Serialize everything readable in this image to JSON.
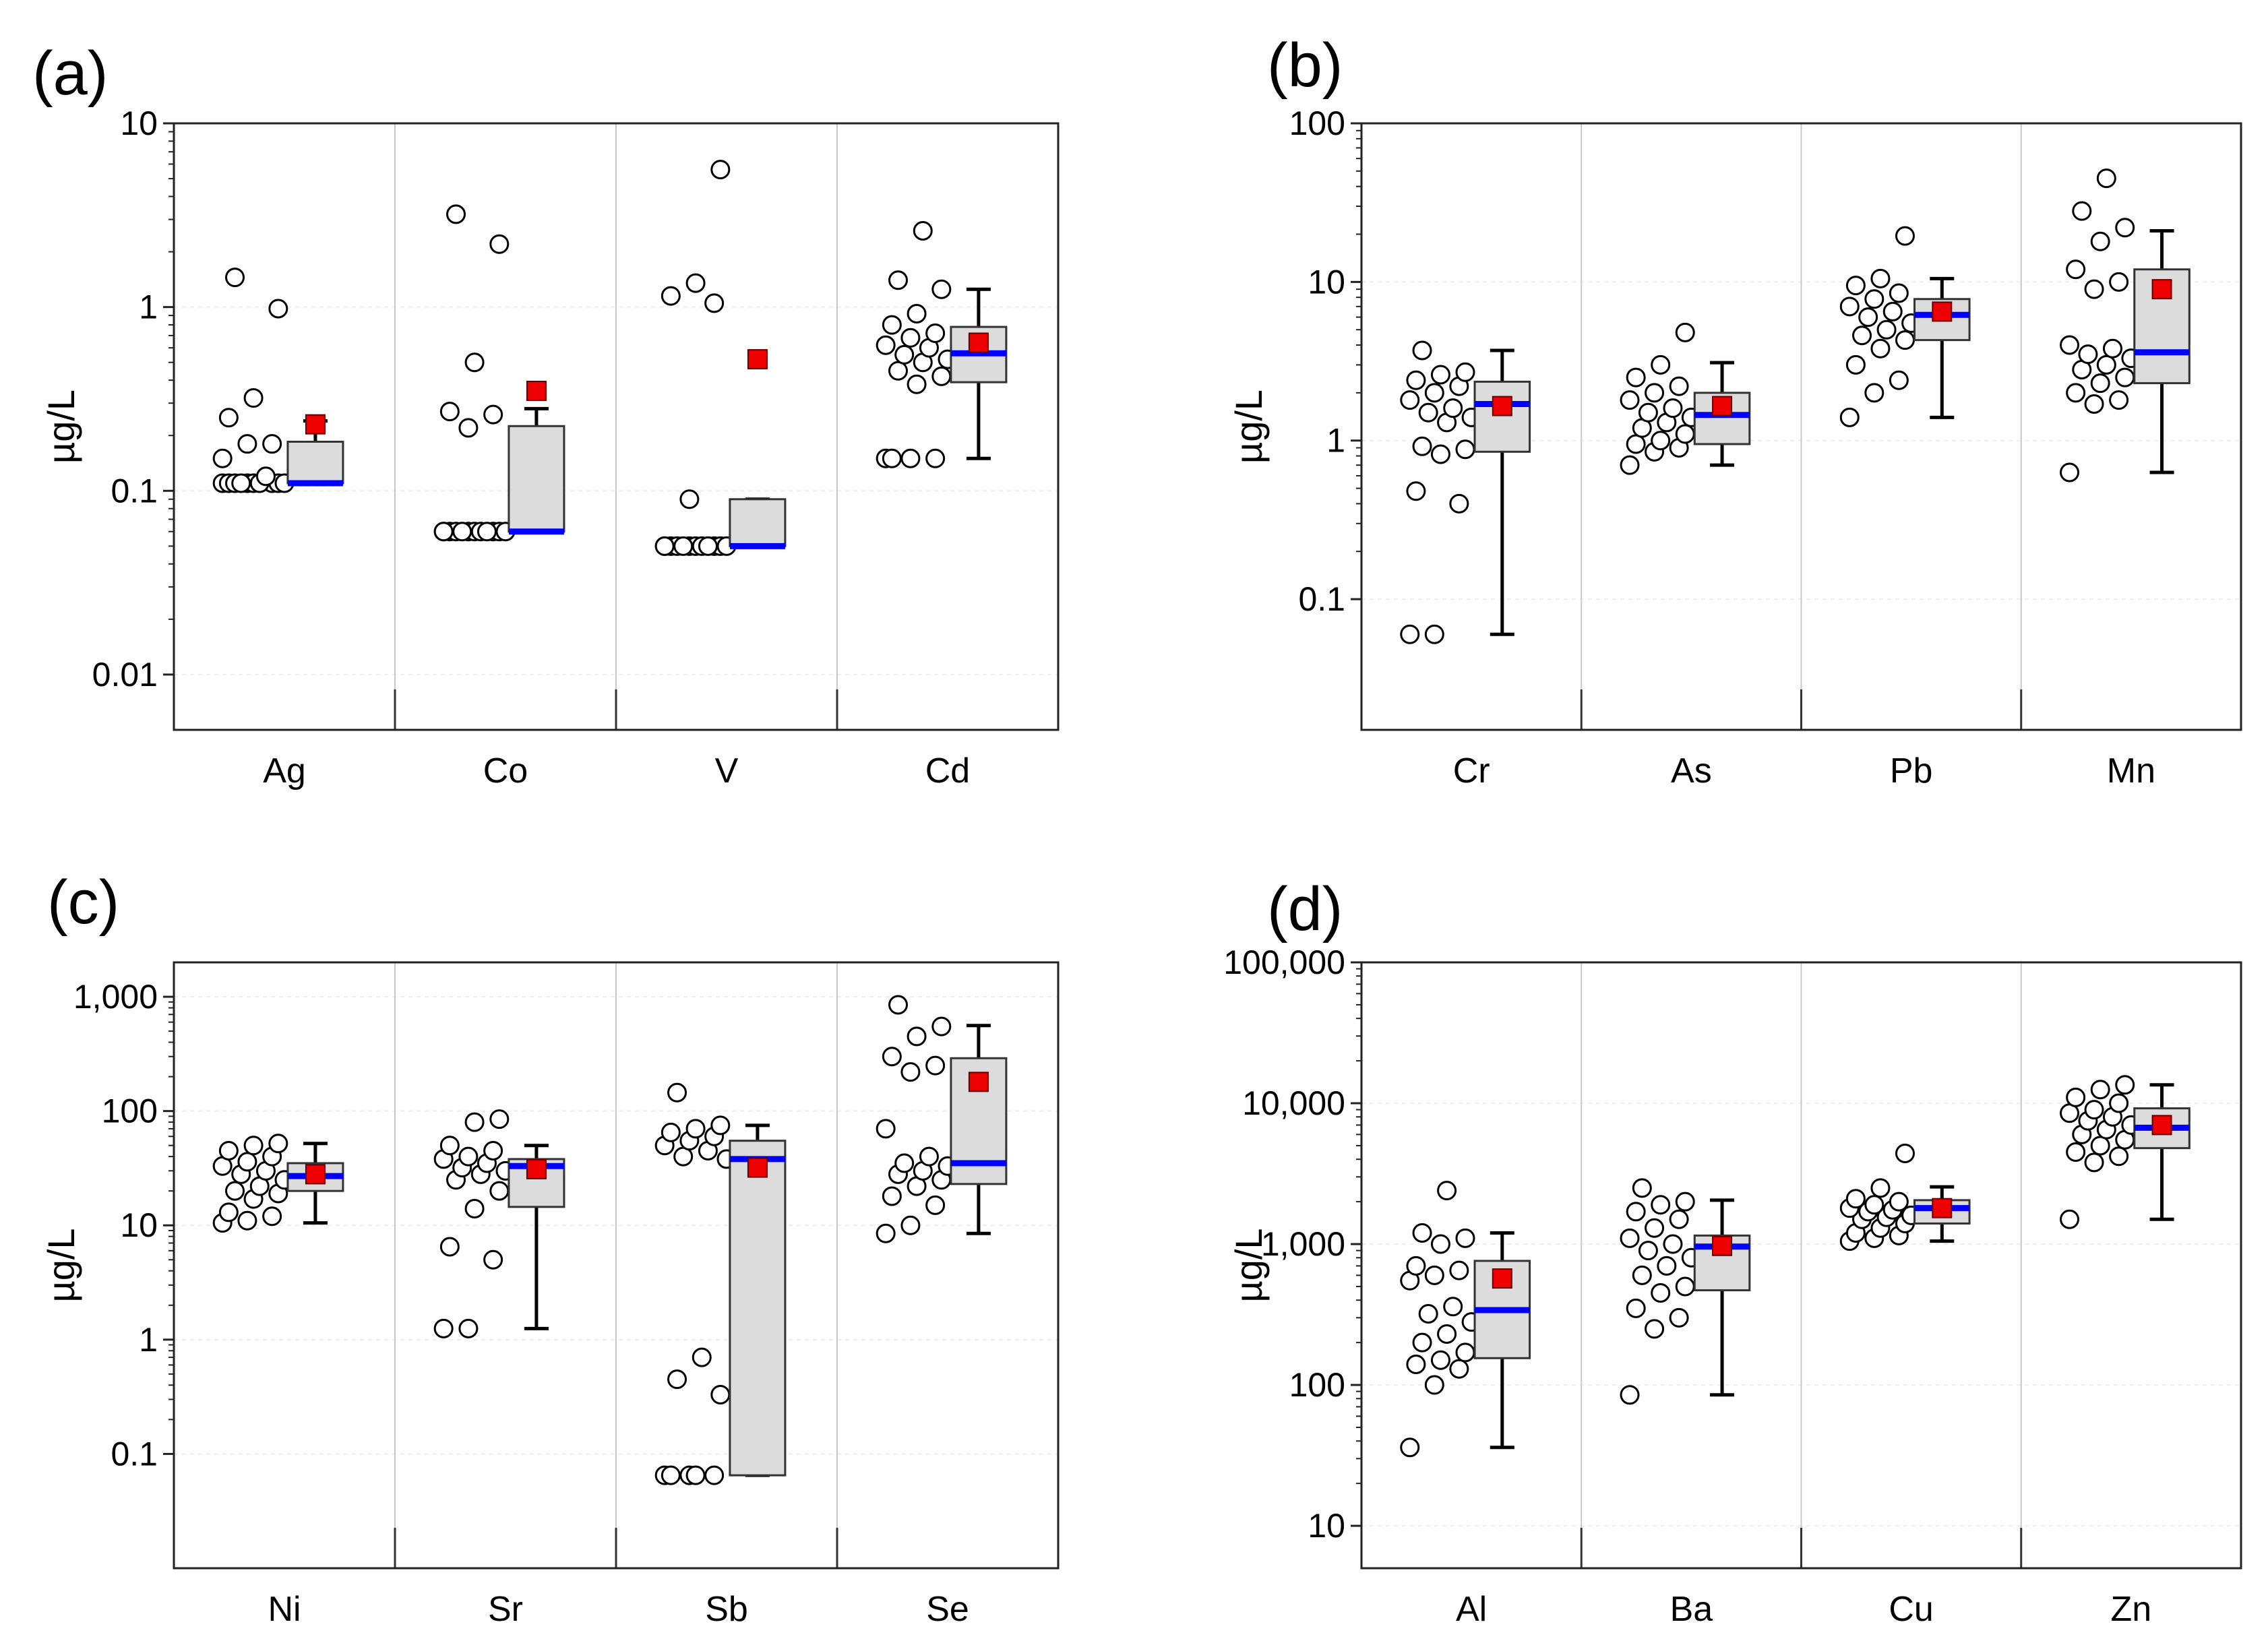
{
  "figure": {
    "colors": {
      "box_fill": "#dcdcdc",
      "median": "#0000ff",
      "mean": "#ee0000",
      "point_stroke": "#000000",
      "divider": "#c8c8c8",
      "grid": "#eeeeee"
    }
  },
  "chart_data": [
    {
      "panel": "(a)",
      "type": "box",
      "ylabel": "µg/L",
      "yscale": "log",
      "ylim": [
        0.005,
        10
      ],
      "yticks": [
        {
          "v": 0.01,
          "label": "0.01"
        },
        {
          "v": 0.1,
          "label": "0.1"
        },
        {
          "v": 1,
          "label": "1"
        },
        {
          "v": 10,
          "label": "10"
        }
      ],
      "categories": [
        {
          "name": "Ag",
          "points": [
            0.11,
            0.11,
            0.11,
            0.11,
            0.11,
            0.11,
            0.11,
            0.11,
            0.11,
            0.11,
            0.12,
            0.15,
            0.18,
            0.18,
            0.25,
            0.32,
            0.98,
            1.45
          ],
          "q1": 0.11,
          "median": 0.11,
          "q3": 0.185,
          "whisker_low": 0.11,
          "whisker_high": 0.24,
          "mean": 0.23
        },
        {
          "name": "Co",
          "points": [
            0.06,
            0.06,
            0.06,
            0.06,
            0.06,
            0.06,
            0.06,
            0.06,
            0.06,
            0.06,
            0.06,
            0.06,
            0.22,
            0.26,
            0.27,
            0.5,
            2.2,
            3.2
          ],
          "q1": 0.06,
          "median": 0.06,
          "q3": 0.225,
          "whisker_low": 0.06,
          "whisker_high": 0.28,
          "mean": 0.35
        },
        {
          "name": "V",
          "points": [
            0.05,
            0.05,
            0.05,
            0.05,
            0.05,
            0.05,
            0.05,
            0.05,
            0.05,
            0.05,
            0.05,
            0.05,
            0.09,
            1.05,
            1.15,
            1.35,
            5.6
          ],
          "q1": 0.05,
          "median": 0.05,
          "q3": 0.09,
          "whisker_low": 0.05,
          "whisker_high": 0.09,
          "mean": 0.52
        },
        {
          "name": "Cd",
          "points": [
            0.15,
            0.15,
            0.15,
            0.15,
            0.38,
            0.42,
            0.45,
            0.5,
            0.52,
            0.55,
            0.6,
            0.62,
            0.68,
            0.72,
            0.8,
            0.92,
            1.25,
            1.4,
            2.6
          ],
          "q1": 0.39,
          "median": 0.56,
          "q3": 0.78,
          "whisker_low": 0.15,
          "whisker_high": 1.25,
          "mean": 0.64
        }
      ]
    },
    {
      "panel": "(b)",
      "type": "box",
      "ylabel": "µg/L",
      "yscale": "log",
      "ylim": [
        0.015,
        100
      ],
      "yticks": [
        {
          "v": 0.1,
          "label": "0.1"
        },
        {
          "v": 1,
          "label": "1"
        },
        {
          "v": 10,
          "label": "10"
        },
        {
          "v": 100,
          "label": "100"
        }
      ],
      "categories": [
        {
          "name": "Cr",
          "points": [
            0.06,
            0.06,
            0.4,
            0.48,
            0.82,
            0.88,
            0.92,
            1.3,
            1.4,
            1.5,
            1.6,
            1.8,
            2.0,
            2.2,
            2.4,
            2.6,
            2.7,
            3.7
          ],
          "q1": 0.85,
          "median": 1.7,
          "q3": 2.35,
          "whisker_low": 0.06,
          "whisker_high": 3.7,
          "mean": 1.65
        },
        {
          "name": "As",
          "points": [
            0.7,
            0.85,
            0.9,
            0.95,
            1.0,
            1.1,
            1.2,
            1.3,
            1.4,
            1.5,
            1.6,
            1.8,
            2.0,
            2.2,
            2.5,
            3.0,
            4.8
          ],
          "q1": 0.95,
          "median": 1.45,
          "q3": 2.0,
          "whisker_low": 0.7,
          "whisker_high": 3.1,
          "mean": 1.65
        },
        {
          "name": "Pb",
          "points": [
            1.4,
            2.0,
            2.4,
            3.0,
            3.8,
            4.3,
            4.6,
            5.0,
            5.5,
            6.0,
            6.5,
            7.0,
            7.8,
            8.5,
            9.5,
            10.5,
            19.5
          ],
          "q1": 4.3,
          "median": 6.2,
          "q3": 7.8,
          "whisker_low": 1.4,
          "whisker_high": 10.5,
          "mean": 6.5
        },
        {
          "name": "Mn",
          "points": [
            0.63,
            1.7,
            1.8,
            2.0,
            2.3,
            2.5,
            2.8,
            3.0,
            3.3,
            3.5,
            3.8,
            4.0,
            9.0,
            10.0,
            12.0,
            18.0,
            22.0,
            28.0,
            45.0
          ],
          "q1": 2.3,
          "median": 3.6,
          "q3": 12.0,
          "whisker_low": 0.63,
          "whisker_high": 21.0,
          "mean": 9.0
        }
      ]
    },
    {
      "panel": "(c)",
      "type": "box",
      "ylabel": "µg/L",
      "yscale": "log",
      "ylim": [
        0.01,
        2000
      ],
      "yticks": [
        {
          "v": 0.1,
          "label": "0.1"
        },
        {
          "v": 1,
          "label": "1"
        },
        {
          "v": 10,
          "label": "10"
        },
        {
          "v": 100,
          "label": "100"
        },
        {
          "v": 1000,
          "label": "1,000"
        }
      ],
      "categories": [
        {
          "name": "Ni",
          "points": [
            10.5,
            11.0,
            12.0,
            13.0,
            17.0,
            19.0,
            20.0,
            22.0,
            25.0,
            28.0,
            30.0,
            33.0,
            36.0,
            40.0,
            45.0,
            50.0,
            52.0
          ],
          "q1": 20.0,
          "median": 27.0,
          "q3": 35.0,
          "whisker_low": 10.5,
          "whisker_high": 52.0,
          "mean": 28.0
        },
        {
          "name": "Sr",
          "points": [
            1.25,
            1.25,
            5.0,
            6.5,
            14.0,
            20.0,
            25.0,
            28.0,
            30.0,
            32.0,
            35.0,
            38.0,
            40.0,
            45.0,
            50.0,
            80.0,
            85.0
          ],
          "q1": 14.5,
          "median": 33.0,
          "q3": 38.0,
          "whisker_low": 1.25,
          "whisker_high": 50.0,
          "mean": 31.0
        },
        {
          "name": "Sb",
          "points": [
            0.065,
            0.065,
            0.065,
            0.065,
            0.065,
            0.33,
            0.45,
            0.7,
            38.0,
            40.0,
            45.0,
            50.0,
            55.0,
            60.0,
            65.0,
            70.0,
            75.0,
            145.0
          ],
          "q1": 0.065,
          "median": 38.0,
          "q3": 55.0,
          "whisker_low": 0.065,
          "whisker_high": 75.0,
          "mean": 32.0
        },
        {
          "name": "Se",
          "points": [
            8.5,
            10.0,
            15.0,
            18.0,
            22.0,
            25.0,
            28.0,
            30.0,
            33.0,
            35.0,
            40.0,
            70.0,
            220.0,
            250.0,
            300.0,
            450.0,
            550.0,
            850.0
          ],
          "q1": 23.0,
          "median": 35.0,
          "q3": 290.0,
          "whisker_low": 8.5,
          "whisker_high": 560.0,
          "mean": 180.0
        }
      ]
    },
    {
      "panel": "(d)",
      "type": "box",
      "ylabel": "µg/L",
      "yscale": "log",
      "ylim": [
        5,
        100000
      ],
      "yticks": [
        {
          "v": 10,
          "label": "10"
        },
        {
          "v": 100,
          "label": "100"
        },
        {
          "v": 1000,
          "label": "1,000"
        },
        {
          "v": 10000,
          "label": "10,000"
        },
        {
          "v": 100000,
          "label": "100,000"
        }
      ],
      "categories": [
        {
          "name": "Al",
          "points": [
            36.0,
            100.0,
            130.0,
            140.0,
            150.0,
            170.0,
            200.0,
            230.0,
            280.0,
            320.0,
            360.0,
            550.0,
            600.0,
            650.0,
            700.0,
            1000.0,
            1100.0,
            1200.0,
            2400.0
          ],
          "q1": 155.0,
          "median": 340.0,
          "q3": 760.0,
          "whisker_low": 36.0,
          "whisker_high": 1200.0,
          "mean": 570.0
        },
        {
          "name": "Ba",
          "points": [
            85.0,
            250.0,
            300.0,
            350.0,
            450.0,
            500.0,
            600.0,
            700.0,
            800.0,
            900.0,
            1000.0,
            1100.0,
            1300.0,
            1500.0,
            1700.0,
            1900.0,
            2000.0,
            2500.0
          ],
          "q1": 470.0,
          "median": 960.0,
          "q3": 1150.0,
          "whisker_low": 85.0,
          "whisker_high": 2050.0,
          "mean": 970.0
        },
        {
          "name": "Cu",
          "points": [
            1050.0,
            1100.0,
            1150.0,
            1200.0,
            1300.0,
            1400.0,
            1500.0,
            1550.0,
            1600.0,
            1700.0,
            1750.0,
            1800.0,
            1900.0,
            2000.0,
            2100.0,
            2500.0,
            4400.0
          ],
          "q1": 1400.0,
          "median": 1800.0,
          "q3": 2050.0,
          "whisker_low": 1050.0,
          "whisker_high": 2550.0,
          "mean": 1800.0
        },
        {
          "name": "Zn",
          "points": [
            1500.0,
            3800.0,
            4200.0,
            4500.0,
            5000.0,
            5500.0,
            6000.0,
            6500.0,
            7000.0,
            7500.0,
            8000.0,
            8500.0,
            9000.0,
            10000.0,
            11000.0,
            12500.0,
            13500.0
          ],
          "q1": 4800.0,
          "median": 6700.0,
          "q3": 9200.0,
          "whisker_low": 1500.0,
          "whisker_high": 13500.0,
          "mean": 7000.0
        }
      ]
    }
  ]
}
